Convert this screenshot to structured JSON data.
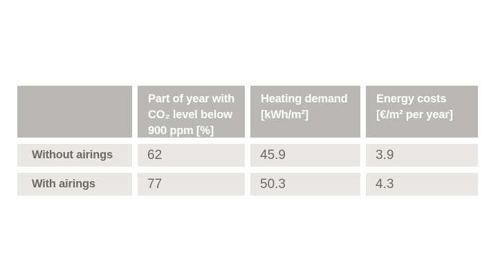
{
  "colors": {
    "header_bg": "#b9b8b4",
    "cell_bg": "#e9e7e3",
    "header_text": "#ffffff",
    "body_text": "#6d6a63",
    "page_bg": "#ffffff"
  },
  "table": {
    "columns": [
      {
        "label": ""
      },
      {
        "label": "Part of year with\nCO₂ level below\n900 ppm [%]"
      },
      {
        "label": "Heating demand\n[kWh/m²]"
      },
      {
        "label": "Energy costs\n[€/m² per year]"
      }
    ],
    "rows": [
      {
        "label": "Without airings",
        "values": [
          "62",
          "45.9",
          "3.9"
        ]
      },
      {
        "label": "With airings",
        "values": [
          "77",
          "50.3",
          "4.3"
        ]
      }
    ]
  }
}
